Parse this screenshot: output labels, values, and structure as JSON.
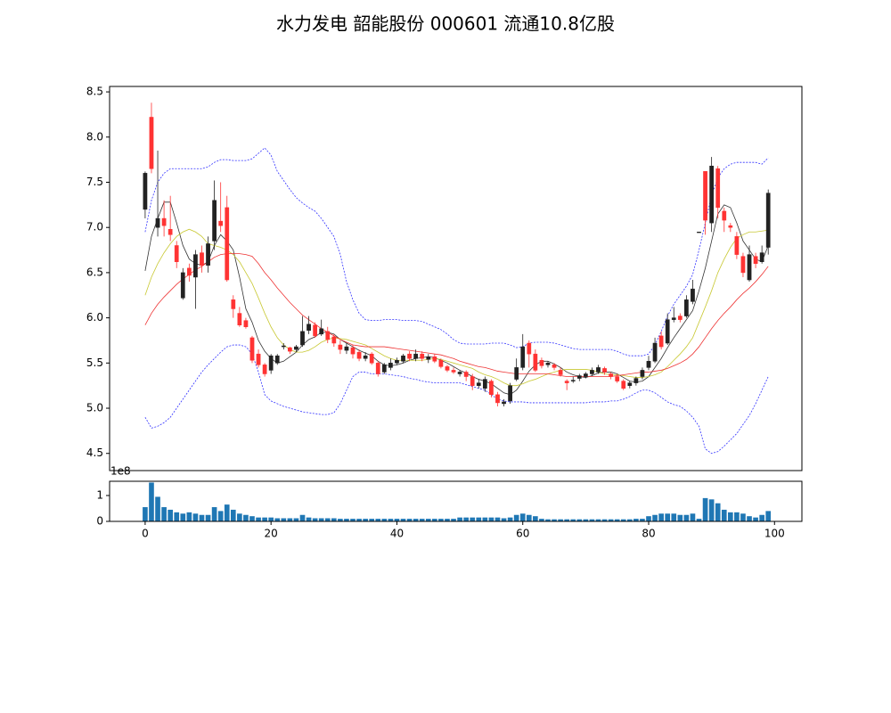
{
  "chart_data": [
    {
      "type": "candlestick",
      "title": "水力发电 韶能股份 000601 流通10.8亿股",
      "x": [
        0,
        1,
        2,
        3,
        4,
        5,
        6,
        7,
        8,
        9,
        10,
        11,
        12,
        13,
        14,
        15,
        16,
        17,
        18,
        19,
        20,
        21,
        22,
        23,
        24,
        25,
        26,
        27,
        28,
        29,
        30,
        31,
        32,
        33,
        34,
        35,
        36,
        37,
        38,
        39,
        40,
        41,
        42,
        43,
        44,
        45,
        46,
        47,
        48,
        49,
        50,
        51,
        52,
        53,
        54,
        55,
        56,
        57,
        58,
        59,
        60,
        61,
        62,
        63,
        64,
        65,
        66,
        67,
        68,
        69,
        70,
        71,
        72,
        73,
        74,
        75,
        76,
        77,
        78,
        79,
        80,
        81,
        82,
        83,
        84,
        85,
        86,
        87,
        88,
        89,
        90,
        91,
        92,
        93,
        94,
        95,
        96,
        97,
        98,
        99
      ],
      "open": [
        7.2,
        8.22,
        7.0,
        7.1,
        6.98,
        6.8,
        6.22,
        6.55,
        6.45,
        6.72,
        6.58,
        6.85,
        7.07,
        7.22,
        6.2,
        6.05,
        5.97,
        5.78,
        5.6,
        5.48,
        5.42,
        5.5,
        5.68,
        5.67,
        5.65,
        5.7,
        5.86,
        5.92,
        5.82,
        5.85,
        5.79,
        5.7,
        5.64,
        5.67,
        5.62,
        5.55,
        5.6,
        5.5,
        5.4,
        5.45,
        5.5,
        5.52,
        5.6,
        5.55,
        5.6,
        5.54,
        5.57,
        5.53,
        5.46,
        5.42,
        5.38,
        5.4,
        5.35,
        5.25,
        5.22,
        5.3,
        5.15,
        5.05,
        5.08,
        5.32,
        5.45,
        5.72,
        5.6,
        5.53,
        5.48,
        5.48,
        5.42,
        5.3,
        5.3,
        5.33,
        5.35,
        5.38,
        5.4,
        5.44,
        5.38,
        5.35,
        5.3,
        5.25,
        5.28,
        5.35,
        5.45,
        5.52,
        5.8,
        5.72,
        5.98,
        6.02,
        6.02,
        6.18,
        6.95,
        7.62,
        7.05,
        7.65,
        7.18,
        7.02,
        6.9,
        6.68,
        6.42,
        6.68,
        6.62,
        6.78
      ],
      "high": [
        7.62,
        8.38,
        7.85,
        7.3,
        7.35,
        6.85,
        6.55,
        6.6,
        6.75,
        6.8,
        6.9,
        7.52,
        7.5,
        7.35,
        6.25,
        6.12,
        6.0,
        5.8,
        5.65,
        5.5,
        5.6,
        5.6,
        5.72,
        5.68,
        5.7,
        6.02,
        6.02,
        5.95,
        5.98,
        5.9,
        5.82,
        5.75,
        5.72,
        5.7,
        5.65,
        5.62,
        5.62,
        5.52,
        5.5,
        5.55,
        5.56,
        5.6,
        5.63,
        5.65,
        5.63,
        5.6,
        5.6,
        5.55,
        5.48,
        5.45,
        5.42,
        5.42,
        5.38,
        5.32,
        5.35,
        5.32,
        5.18,
        5.1,
        5.28,
        5.55,
        5.82,
        5.75,
        5.65,
        5.56,
        5.52,
        5.5,
        5.45,
        5.32,
        5.35,
        5.38,
        5.4,
        5.45,
        5.48,
        5.46,
        5.4,
        5.38,
        5.32,
        5.3,
        5.35,
        5.45,
        5.58,
        5.78,
        5.85,
        6.05,
        6.12,
        6.05,
        6.25,
        6.42,
        6.95,
        7.62,
        7.78,
        7.68,
        7.22,
        7.05,
        6.95,
        6.72,
        6.8,
        6.72,
        6.8,
        7.42
      ],
      "low": [
        7.1,
        7.6,
        6.9,
        6.9,
        6.85,
        6.55,
        6.2,
        6.4,
        6.1,
        6.5,
        6.5,
        6.75,
        6.95,
        6.4,
        6.0,
        5.9,
        5.88,
        5.5,
        5.45,
        5.35,
        5.38,
        5.48,
        5.65,
        5.6,
        5.62,
        5.68,
        5.82,
        5.78,
        5.8,
        5.72,
        5.68,
        5.6,
        5.6,
        5.55,
        5.52,
        5.52,
        5.48,
        5.35,
        5.38,
        5.42,
        5.48,
        5.5,
        5.52,
        5.52,
        5.52,
        5.5,
        5.5,
        5.44,
        5.4,
        5.38,
        5.35,
        5.3,
        5.2,
        5.22,
        5.18,
        5.12,
        5.02,
        5.02,
        5.05,
        5.3,
        5.42,
        5.45,
        5.4,
        5.44,
        5.45,
        5.42,
        5.35,
        5.2,
        5.28,
        5.3,
        5.33,
        5.36,
        5.38,
        5.37,
        5.32,
        5.28,
        5.2,
        5.22,
        5.25,
        5.32,
        5.42,
        5.5,
        5.65,
        5.7,
        5.95,
        5.95,
        6.0,
        6.15,
        6.95,
        6.92,
        6.95,
        7.1,
        6.95,
        6.95,
        6.65,
        6.45,
        6.4,
        6.55,
        6.6,
        6.7
      ],
      "close": [
        7.6,
        7.65,
        7.1,
        7.02,
        6.92,
        6.62,
        6.5,
        6.47,
        6.7,
        6.58,
        6.82,
        7.3,
        7.02,
        6.42,
        6.1,
        5.92,
        5.9,
        5.53,
        5.48,
        5.38,
        5.58,
        5.58,
        5.69,
        5.63,
        5.68,
        5.85,
        5.93,
        5.8,
        5.88,
        5.76,
        5.72,
        5.65,
        5.68,
        5.6,
        5.55,
        5.58,
        5.5,
        5.38,
        5.48,
        5.5,
        5.53,
        5.58,
        5.55,
        5.6,
        5.55,
        5.57,
        5.52,
        5.46,
        5.42,
        5.4,
        5.4,
        5.35,
        5.25,
        5.28,
        5.32,
        5.15,
        5.06,
        5.07,
        5.25,
        5.45,
        5.68,
        5.6,
        5.42,
        5.47,
        5.5,
        5.45,
        5.37,
        5.28,
        5.31,
        5.36,
        5.38,
        5.42,
        5.45,
        5.4,
        5.35,
        5.3,
        5.22,
        5.28,
        5.33,
        5.42,
        5.52,
        5.72,
        5.68,
        5.98,
        6.0,
        5.98,
        6.2,
        6.32,
        6.95,
        7.08,
        7.68,
        7.22,
        7.08,
        7.0,
        6.7,
        6.5,
        6.7,
        6.6,
        6.72,
        7.38
      ],
      "up_color": "#222222",
      "down_color": "#ff3333",
      "series": [
        {
          "color": "#333333",
          "style": "solid",
          "values": [
            6.52,
            6.9,
            7.1,
            7.28,
            7.28,
            7.05,
            6.8,
            6.65,
            6.6,
            6.58,
            6.62,
            6.8,
            6.92,
            6.85,
            6.75,
            6.45,
            6.1,
            5.95,
            5.75,
            5.63,
            5.55,
            5.5,
            5.52,
            5.57,
            5.62,
            5.7,
            5.76,
            5.79,
            5.84,
            5.84,
            5.82,
            5.76,
            5.72,
            5.68,
            5.64,
            5.61,
            5.58,
            5.52,
            5.48,
            5.47,
            5.48,
            5.5,
            5.53,
            5.55,
            5.56,
            5.57,
            5.56,
            5.53,
            5.5,
            5.46,
            5.42,
            5.39,
            5.35,
            5.32,
            5.3,
            5.27,
            5.22,
            5.17,
            5.15,
            5.2,
            5.3,
            5.41,
            5.48,
            5.52,
            5.52,
            5.49,
            5.45,
            5.4,
            5.37,
            5.35,
            5.34,
            5.36,
            5.39,
            5.4,
            5.4,
            5.38,
            5.34,
            5.3,
            5.29,
            5.3,
            5.35,
            5.45,
            5.55,
            5.67,
            5.78,
            5.88,
            5.98,
            6.08,
            6.3,
            6.55,
            6.85,
            7.15,
            7.25,
            7.22,
            7.05,
            6.85,
            6.75,
            6.65,
            6.62,
            6.8
          ]
        },
        {
          "color": "#c8c832",
          "style": "solid",
          "values": [
            6.25,
            6.45,
            6.6,
            6.72,
            6.82,
            6.9,
            6.95,
            6.98,
            6.95,
            6.9,
            6.82,
            6.8,
            6.78,
            6.75,
            6.7,
            6.62,
            6.5,
            6.38,
            6.22,
            6.05,
            5.9,
            5.78,
            5.7,
            5.65,
            5.62,
            5.62,
            5.64,
            5.68,
            5.73,
            5.76,
            5.78,
            5.77,
            5.76,
            5.74,
            5.72,
            5.7,
            5.66,
            5.62,
            5.58,
            5.55,
            5.53,
            5.53,
            5.53,
            5.53,
            5.53,
            5.54,
            5.55,
            5.54,
            5.52,
            5.5,
            5.48,
            5.46,
            5.44,
            5.4,
            5.37,
            5.35,
            5.32,
            5.28,
            5.25,
            5.25,
            5.27,
            5.3,
            5.32,
            5.35,
            5.38,
            5.4,
            5.42,
            5.43,
            5.43,
            5.43,
            5.43,
            5.42,
            5.4,
            5.38,
            5.37,
            5.37,
            5.36,
            5.35,
            5.34,
            5.34,
            5.35,
            5.37,
            5.4,
            5.46,
            5.53,
            5.6,
            5.68,
            5.78,
            5.95,
            6.12,
            6.3,
            6.5,
            6.65,
            6.78,
            6.88,
            6.92,
            6.95,
            6.95,
            6.96,
            6.97
          ]
        },
        {
          "color": "#ee3333",
          "style": "solid",
          "values": [
            5.92,
            6.05,
            6.15,
            6.23,
            6.3,
            6.37,
            6.43,
            6.48,
            6.53,
            6.57,
            6.62,
            6.67,
            6.7,
            6.71,
            6.71,
            6.71,
            6.7,
            6.68,
            6.6,
            6.5,
            6.42,
            6.33,
            6.25,
            6.17,
            6.1,
            6.03,
            5.98,
            5.93,
            5.88,
            5.84,
            5.8,
            5.76,
            5.73,
            5.7,
            5.69,
            5.68,
            5.68,
            5.68,
            5.68,
            5.67,
            5.66,
            5.65,
            5.64,
            5.63,
            5.62,
            5.61,
            5.6,
            5.59,
            5.57,
            5.55,
            5.52,
            5.5,
            5.48,
            5.46,
            5.45,
            5.43,
            5.41,
            5.4,
            5.39,
            5.38,
            5.38,
            5.38,
            5.38,
            5.38,
            5.38,
            5.37,
            5.36,
            5.35,
            5.35,
            5.35,
            5.35,
            5.35,
            5.35,
            5.35,
            5.35,
            5.36,
            5.37,
            5.38,
            5.39,
            5.4,
            5.4,
            5.41,
            5.42,
            5.44,
            5.47,
            5.5,
            5.54,
            5.6,
            5.68,
            5.78,
            5.88,
            5.97,
            6.05,
            6.12,
            6.2,
            6.27,
            6.33,
            6.4,
            6.48,
            6.57
          ]
        },
        {
          "color": "#3333ff",
          "style": "dashed",
          "values": [
            6.95,
            7.3,
            7.5,
            7.6,
            7.65,
            7.65,
            7.65,
            7.65,
            7.65,
            7.65,
            7.67,
            7.72,
            7.75,
            7.75,
            7.74,
            7.74,
            7.74,
            7.76,
            7.82,
            7.88,
            7.8,
            7.62,
            7.52,
            7.42,
            7.33,
            7.27,
            7.22,
            7.18,
            7.1,
            7.0,
            6.9,
            6.7,
            6.4,
            6.2,
            6.05,
            5.98,
            5.97,
            5.97,
            5.98,
            5.98,
            5.98,
            5.97,
            5.97,
            5.97,
            5.96,
            5.93,
            5.9,
            5.87,
            5.82,
            5.76,
            5.72,
            5.71,
            5.71,
            5.71,
            5.71,
            5.72,
            5.72,
            5.72,
            5.7,
            5.67,
            5.68,
            5.72,
            5.73,
            5.73,
            5.73,
            5.72,
            5.7,
            5.68,
            5.66,
            5.65,
            5.65,
            5.65,
            5.65,
            5.65,
            5.65,
            5.63,
            5.6,
            5.58,
            5.58,
            5.58,
            5.6,
            5.7,
            5.85,
            6.02,
            6.15,
            6.25,
            6.35,
            6.48,
            6.75,
            7.05,
            7.35,
            7.55,
            7.65,
            7.7,
            7.72,
            7.72,
            7.72,
            7.72,
            7.7,
            7.77
          ]
        },
        {
          "color": "#3333ff",
          "style": "dashed",
          "values": [
            4.9,
            4.78,
            4.8,
            4.84,
            4.9,
            5.0,
            5.1,
            5.2,
            5.3,
            5.4,
            5.48,
            5.55,
            5.62,
            5.68,
            5.7,
            5.7,
            5.68,
            5.6,
            5.4,
            5.15,
            5.08,
            5.05,
            5.02,
            5.0,
            4.98,
            4.96,
            4.95,
            4.94,
            4.93,
            4.93,
            4.95,
            5.05,
            5.2,
            5.35,
            5.4,
            5.4,
            5.38,
            5.38,
            5.38,
            5.37,
            5.36,
            5.35,
            5.33,
            5.32,
            5.3,
            5.29,
            5.28,
            5.28,
            5.28,
            5.28,
            5.28,
            5.26,
            5.24,
            5.22,
            5.2,
            5.15,
            5.1,
            5.08,
            5.07,
            5.07,
            5.07,
            5.06,
            5.06,
            5.06,
            5.06,
            5.06,
            5.06,
            5.06,
            5.06,
            5.06,
            5.06,
            5.07,
            5.07,
            5.07,
            5.08,
            5.08,
            5.1,
            5.13,
            5.17,
            5.2,
            5.2,
            5.17,
            5.12,
            5.07,
            5.04,
            5.02,
            4.97,
            4.9,
            4.8,
            4.55,
            4.5,
            4.52,
            4.58,
            4.65,
            4.72,
            4.82,
            4.92,
            5.05,
            5.2,
            5.35
          ]
        }
      ],
      "xlim": [
        -5.65,
        104.35
      ],
      "ylim": [
        4.31,
        8.56
      ],
      "yticks": [
        4.5,
        {
          "value": 5,
          "label": "5.0"
        },
        5.5,
        {
          "value": 6,
          "label": "6.0"
        },
        6.5,
        {
          "value": 7,
          "label": "7.0"
        },
        7.5,
        {
          "value": 8,
          "label": "8.0"
        },
        8.5
      ]
    },
    {
      "type": "bar",
      "values": [
        0.55,
        1.5,
        0.95,
        0.55,
        0.45,
        0.35,
        0.3,
        0.35,
        0.3,
        0.25,
        0.25,
        0.55,
        0.4,
        0.65,
        0.45,
        0.3,
        0.25,
        0.2,
        0.15,
        0.15,
        0.15,
        0.12,
        0.12,
        0.12,
        0.12,
        0.25,
        0.15,
        0.12,
        0.12,
        0.12,
        0.12,
        0.1,
        0.1,
        0.1,
        0.1,
        0.1,
        0.1,
        0.1,
        0.1,
        0.1,
        0.1,
        0.1,
        0.1,
        0.1,
        0.1,
        0.1,
        0.1,
        0.1,
        0.1,
        0.1,
        0.15,
        0.15,
        0.15,
        0.15,
        0.15,
        0.15,
        0.15,
        0.12,
        0.15,
        0.25,
        0.3,
        0.25,
        0.2,
        0.1,
        0.08,
        0.08,
        0.08,
        0.08,
        0.08,
        0.08,
        0.08,
        0.08,
        0.08,
        0.08,
        0.08,
        0.08,
        0.08,
        0.08,
        0.1,
        0.1,
        0.2,
        0.25,
        0.3,
        0.3,
        0.3,
        0.25,
        0.25,
        0.3,
        0.1,
        0.9,
        0.85,
        0.7,
        0.45,
        0.35,
        0.35,
        0.3,
        0.2,
        0.15,
        0.25,
        0.4
      ],
      "color": "#1f77b4",
      "offset_text": "1e8",
      "xlim": [
        -5.65,
        104.35
      ],
      "ylim": [
        0,
        1.55
      ],
      "yticks": [
        0,
        1
      ],
      "xticks": [
        0,
        20,
        40,
        60,
        80,
        100
      ]
    }
  ]
}
